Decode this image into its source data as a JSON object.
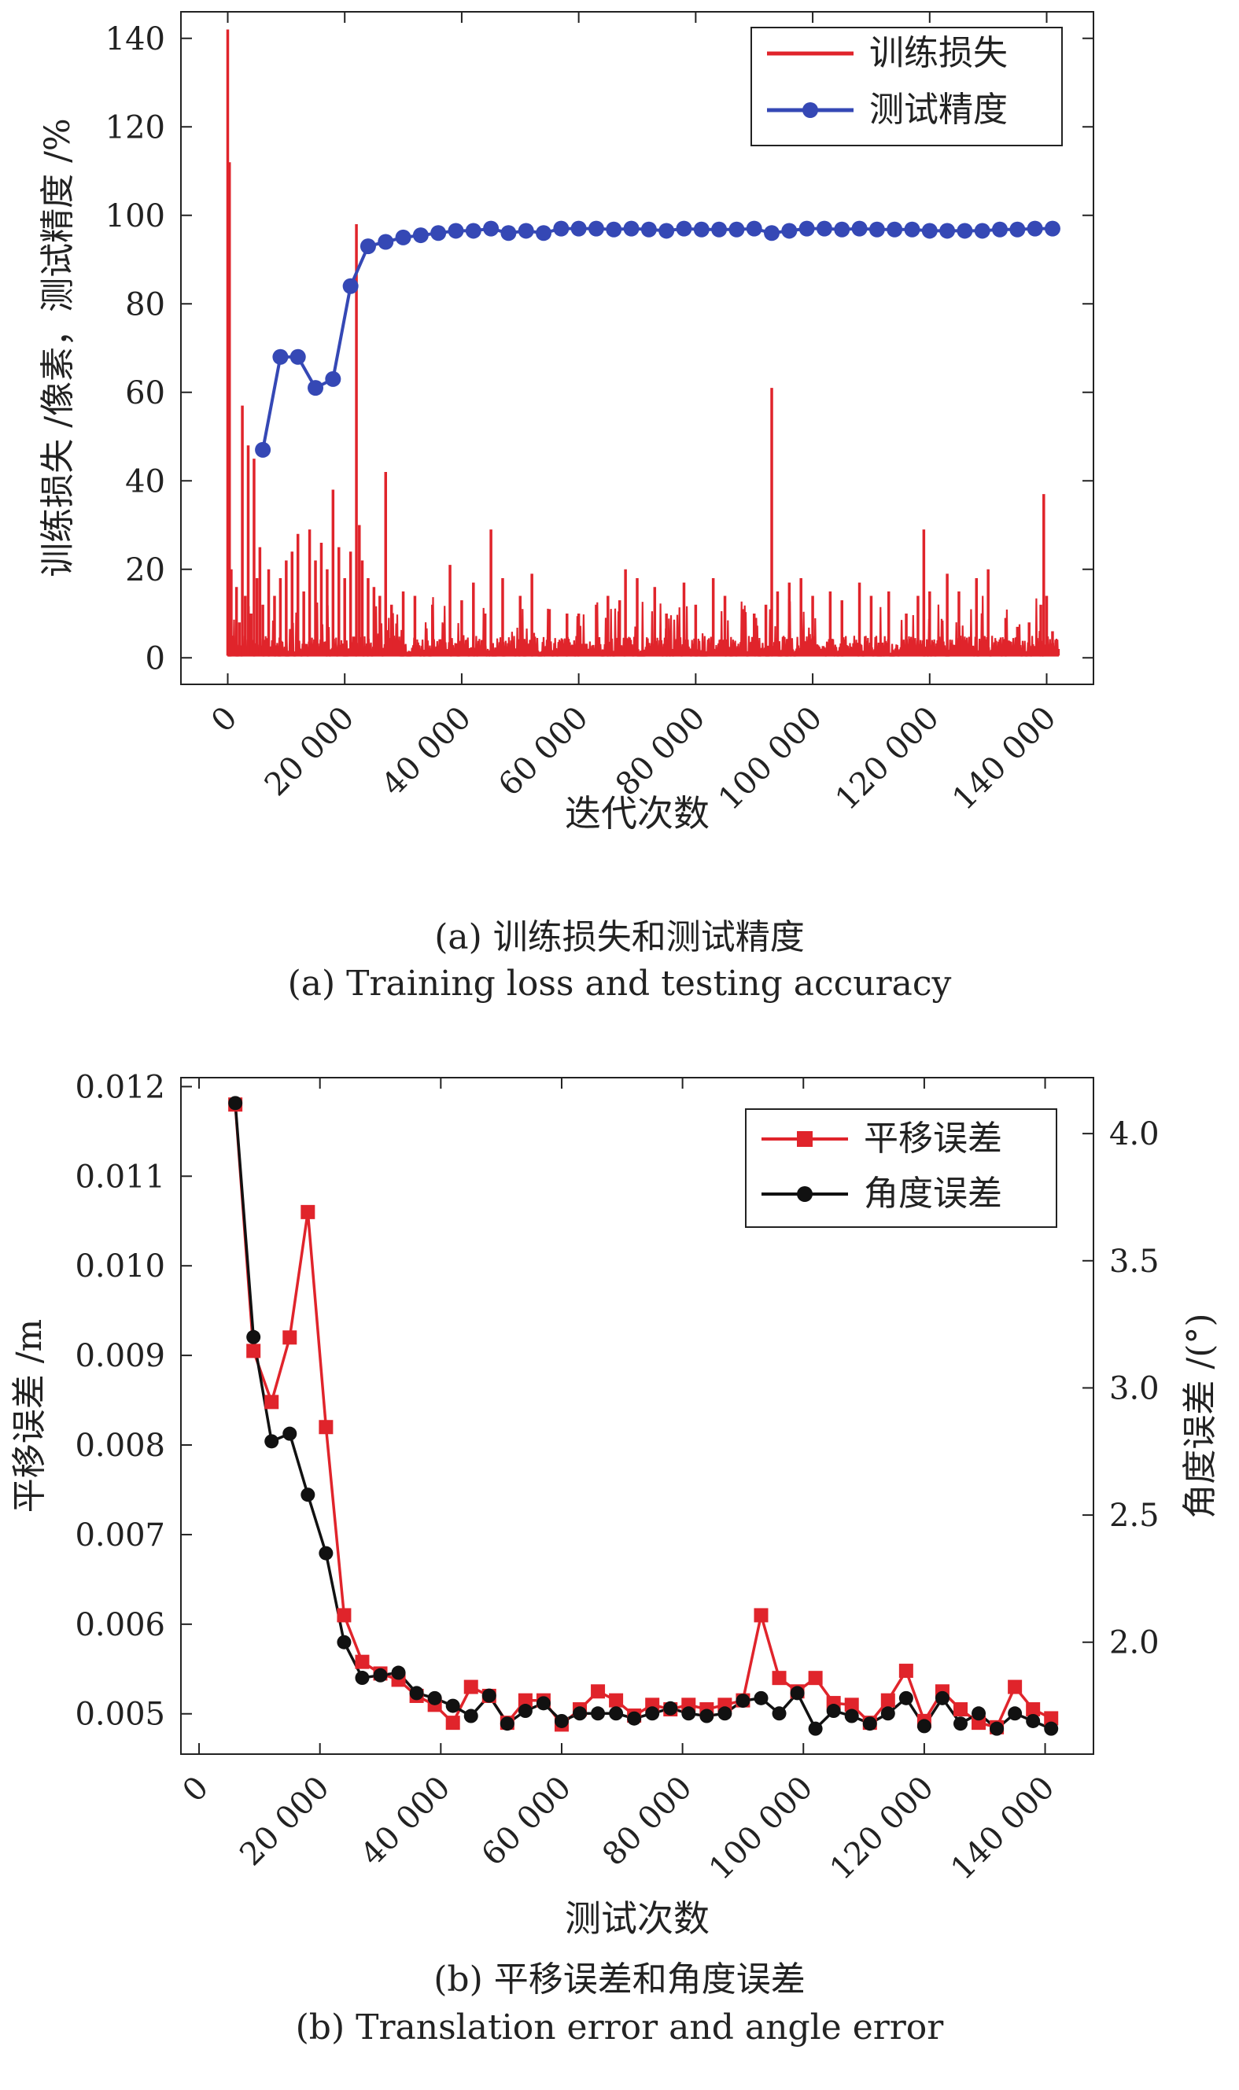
{
  "chart_data": [
    {
      "type": "line",
      "ylabel": "训练损失 /像素，测试精度 /%",
      "xlabel": "迭代次数",
      "xlim": [
        -8000,
        148000
      ],
      "ylim": [
        -6,
        146
      ],
      "xticks": [
        0,
        20000,
        40000,
        60000,
        80000,
        100000,
        120000,
        140000
      ],
      "xtick_labels": [
        "0",
        "20 000",
        "40 000",
        "60 000",
        "80 000",
        "100 000",
        "120 000",
        "140 000"
      ],
      "yticks": [
        0,
        20,
        40,
        60,
        80,
        100,
        120,
        140
      ],
      "ytick_labels": [
        "0",
        "20",
        "40",
        "60",
        "80",
        "100",
        "120",
        "140"
      ],
      "legend_position": "top-right",
      "series": [
        {
          "name": "训练损失",
          "color": "#e0242b",
          "kind": "line",
          "x": [
            0,
            300,
            600,
            1000,
            1500,
            2000,
            2500,
            3000,
            3500,
            4000,
            4500,
            5000,
            5500,
            6000,
            7000,
            8000,
            9000,
            10000,
            11000,
            12000,
            13000,
            14000,
            15000,
            16000,
            17000,
            18000,
            19000,
            20000,
            21000,
            22000,
            22500,
            23000,
            24000,
            25000,
            26000,
            27000,
            28000,
            30000,
            32000,
            35000,
            38000,
            40000,
            42000,
            44000,
            45000,
            47000,
            50000,
            52000,
            55000,
            58000,
            60000,
            63000,
            65000,
            67000,
            68000,
            70000,
            73000,
            75000,
            78000,
            80000,
            83000,
            85000,
            88000,
            90000,
            92000,
            93000,
            94000,
            96000,
            98000,
            100000,
            103000,
            105000,
            108000,
            110000,
            113000,
            116000,
            118000,
            119000,
            120000,
            123000,
            125000,
            128000,
            130000,
            133000,
            135000,
            137000,
            139000,
            139500,
            140000,
            141000,
            142000
          ],
          "y": [
            142,
            112,
            20,
            5,
            16,
            8,
            57,
            14,
            48,
            10,
            45,
            18,
            25,
            12,
            20,
            14,
            18,
            22,
            24,
            28,
            15,
            29,
            22,
            26,
            20,
            38,
            25,
            18,
            24,
            98,
            30,
            22,
            18,
            16,
            14,
            42,
            12,
            15,
            14,
            12,
            21,
            13,
            17,
            10,
            29,
            18,
            14,
            19,
            11,
            10,
            10,
            12,
            14,
            13,
            20,
            18,
            16,
            10,
            17,
            12,
            18,
            14,
            11,
            10,
            12,
            61,
            15,
            17,
            18,
            14,
            15,
            13,
            17,
            14,
            15,
            10,
            14,
            29,
            15,
            19,
            15,
            18,
            20,
            9,
            7,
            8,
            12,
            37,
            14,
            6,
            2
          ]
        },
        {
          "name": "测试精度",
          "color": "#3548b5",
          "kind": "line-marker",
          "x": [
            6000,
            9000,
            12000,
            15000,
            18000,
            21000,
            24000,
            27000,
            30000,
            33000,
            36000,
            39000,
            42000,
            45000,
            48000,
            51000,
            54000,
            57000,
            60000,
            63000,
            66000,
            69000,
            72000,
            75000,
            78000,
            81000,
            84000,
            87000,
            90000,
            93000,
            96000,
            99000,
            102000,
            105000,
            108000,
            111000,
            114000,
            117000,
            120000,
            123000,
            126000,
            129000,
            132000,
            135000,
            138000,
            141000
          ],
          "y": [
            47,
            68,
            68,
            61,
            63,
            84,
            93,
            94,
            95,
            95.5,
            96,
            96.5,
            96.5,
            97,
            96,
            96.5,
            96,
            97,
            97,
            97,
            96.8,
            97,
            96.8,
            96.5,
            97,
            96.8,
            96.8,
            96.8,
            97,
            96,
            96.5,
            97,
            97,
            96.8,
            97,
            96.8,
            96.8,
            96.8,
            96.5,
            96.5,
            96.5,
            96.5,
            96.8,
            96.8,
            97,
            97
          ]
        }
      ]
    },
    {
      "type": "line",
      "xlabel": "测试次数",
      "ylabel": "平移误差 /m",
      "ylabel_right": "角度误差 /(°)",
      "xlim": [
        -3000,
        148000
      ],
      "ylim": [
        0.00455,
        0.0121
      ],
      "ylim_right": [
        1.56,
        4.22
      ],
      "xticks": [
        0,
        20000,
        40000,
        60000,
        80000,
        100000,
        120000,
        140000
      ],
      "xtick_labels": [
        "0",
        "20 000",
        "40 000",
        "60 000",
        "80 000",
        "100 000",
        "120 000",
        "140 000"
      ],
      "yticks": [
        0.005,
        0.006,
        0.007,
        0.008,
        0.009,
        0.01,
        0.011,
        0.012
      ],
      "ytick_labels": [
        "0.005",
        "0.006",
        "0.007",
        "0.008",
        "0.009",
        "0.010",
        "0.011",
        "0.012"
      ],
      "yticks_right": [
        2.0,
        2.5,
        3.0,
        3.5,
        4.0
      ],
      "ytick_labels_right": [
        "2.0",
        "2.5",
        "3.0",
        "3.5",
        "4.0"
      ],
      "legend_position": "top-right",
      "series": [
        {
          "name": "平移误差",
          "color": "#e0242b",
          "marker": "square",
          "axis": "left",
          "x": [
            6000,
            9000,
            12000,
            15000,
            18000,
            21000,
            24000,
            27000,
            30000,
            33000,
            36000,
            39000,
            42000,
            45000,
            48000,
            51000,
            54000,
            57000,
            60000,
            63000,
            66000,
            69000,
            72000,
            75000,
            78000,
            81000,
            84000,
            87000,
            90000,
            93000,
            96000,
            99000,
            102000,
            105000,
            108000,
            111000,
            114000,
            117000,
            120000,
            123000,
            126000,
            129000,
            132000,
            135000,
            138000,
            141000
          ],
          "y": [
            0.0118,
            0.00905,
            0.00848,
            0.0092,
            0.0106,
            0.0082,
            0.0061,
            0.00558,
            0.00545,
            0.00538,
            0.0052,
            0.0051,
            0.0049,
            0.0053,
            0.0052,
            0.0049,
            0.00515,
            0.00515,
            0.00488,
            0.00505,
            0.00525,
            0.00515,
            0.00498,
            0.0051,
            0.00505,
            0.0051,
            0.00505,
            0.0051,
            0.00515,
            0.0061,
            0.0054,
            0.00525,
            0.0054,
            0.00512,
            0.0051,
            0.0049,
            0.00515,
            0.00548,
            0.00492,
            0.00525,
            0.00505,
            0.0049,
            0.00485,
            0.0053,
            0.00505,
            0.00495
          ]
        },
        {
          "name": "角度误差",
          "color": "#111111",
          "marker": "circle",
          "axis": "right",
          "x": [
            6000,
            9000,
            12000,
            15000,
            18000,
            21000,
            24000,
            27000,
            30000,
            33000,
            36000,
            39000,
            42000,
            45000,
            48000,
            51000,
            54000,
            57000,
            60000,
            63000,
            66000,
            69000,
            72000,
            75000,
            78000,
            81000,
            84000,
            87000,
            90000,
            93000,
            96000,
            99000,
            102000,
            105000,
            108000,
            111000,
            114000,
            117000,
            120000,
            123000,
            126000,
            129000,
            132000,
            135000,
            138000,
            141000
          ],
          "y": [
            4.12,
            3.2,
            2.79,
            2.82,
            2.58,
            2.35,
            2.0,
            1.86,
            1.87,
            1.88,
            1.8,
            1.78,
            1.75,
            1.71,
            1.79,
            1.68,
            1.73,
            1.76,
            1.69,
            1.72,
            1.72,
            1.72,
            1.7,
            1.72,
            1.74,
            1.72,
            1.71,
            1.72,
            1.77,
            1.78,
            1.72,
            1.8,
            1.66,
            1.73,
            1.71,
            1.68,
            1.72,
            1.78,
            1.67,
            1.78,
            1.68,
            1.72,
            1.66,
            1.72,
            1.69,
            1.66
          ]
        }
      ]
    }
  ],
  "captions": {
    "a_zh": "(a) 训练损失和测试精度",
    "a_en": "(a) Training loss and testing accuracy",
    "b_zh": "(b) 平移误差和角度误差",
    "b_en": "(b) Translation error and angle error"
  }
}
